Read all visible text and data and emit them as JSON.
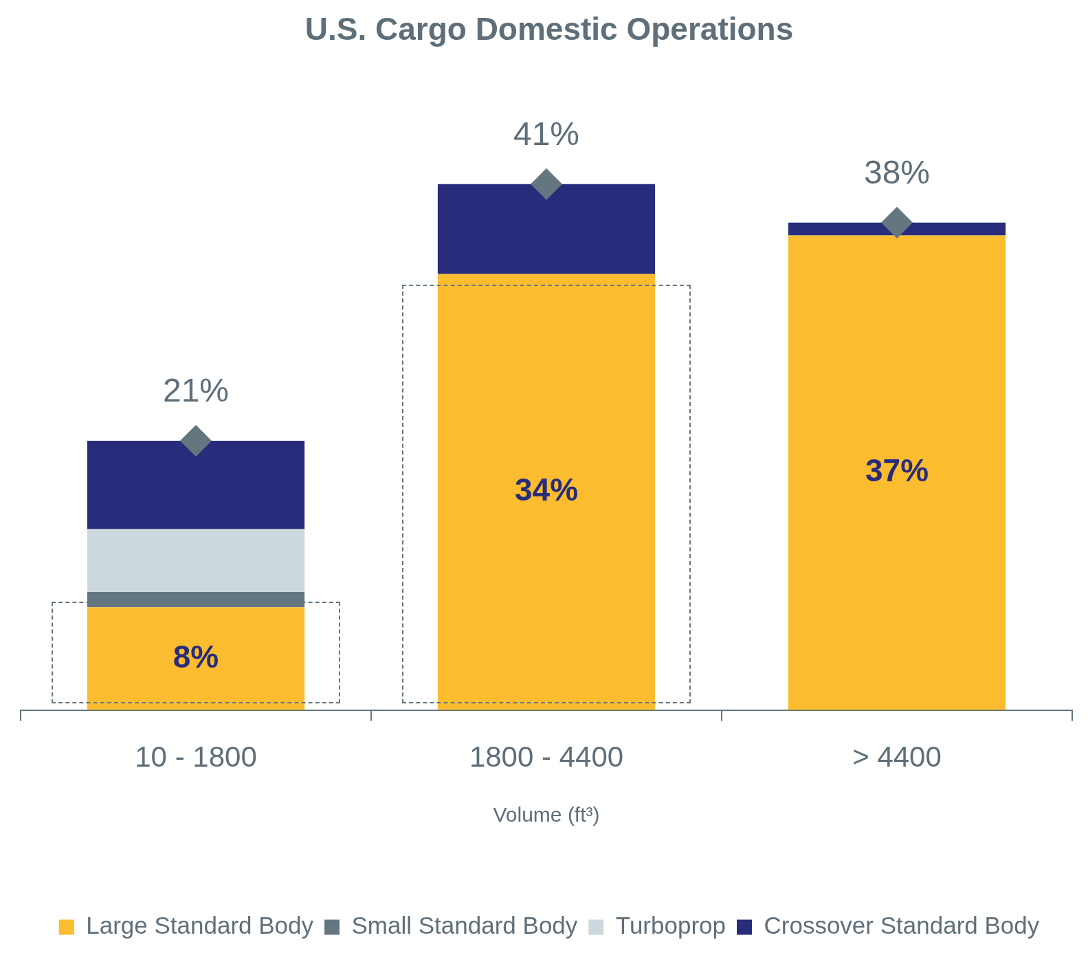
{
  "chart_data": {
    "type": "bar",
    "title": "U.S. Cargo Domestic Operations",
    "xlabel": "Volume (ft³)",
    "categories": [
      "10 - 1800",
      "1800 - 4400",
      "> 4400"
    ],
    "stacked": true,
    "legend": "bottom",
    "grid": false,
    "series": [
      {
        "name": "Large Standard Body",
        "color": "#fbbd2f",
        "values": [
          8,
          34,
          37
        ],
        "value_labels": [
          "8%",
          "34%",
          "37%"
        ]
      },
      {
        "name": "Small Standard Body",
        "color": "#647780",
        "values": [
          1.2,
          0,
          0
        ]
      },
      {
        "name": "Turboprop",
        "color": "#cbd8dd",
        "values": [
          4.9,
          0,
          0
        ]
      },
      {
        "name": "Crossover Standard Body",
        "color": "#282c7a",
        "values": [
          6.9,
          7,
          1
        ]
      },
      {
        "type": "scatter",
        "x": [
          "10 - 1800",
          "1800 - 4400",
          "> 4400"
        ],
        "color": "#647780",
        "marker": "diamond",
        "values": [
          21,
          41,
          38
        ]
      }
    ],
    "totals": [
      "21%",
      "41%",
      "38%"
    ]
  }
}
